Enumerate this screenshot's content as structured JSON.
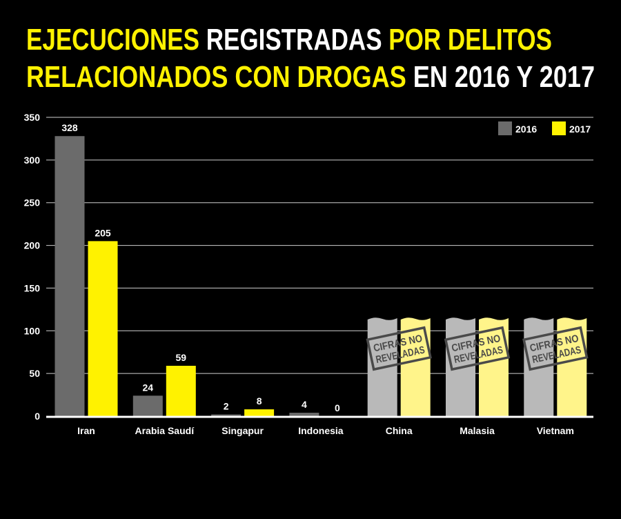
{
  "chart_data": {
    "type": "bar",
    "title_parts": [
      {
        "text": "EJECUCIONES",
        "color": "#fff200",
        "line": 1
      },
      {
        "text": " REGISTRADAS",
        "color": "#ffffff",
        "line": 1
      },
      {
        "text": " POR DELITOS",
        "color": "#fff200",
        "line": 1
      },
      {
        "text": "RELACIONADOS CON DROGAS",
        "color": "#fff200",
        "line": 2
      },
      {
        "text": " EN 2016 Y 2017",
        "color": "#ffffff",
        "line": 2
      }
    ],
    "categories": [
      "Iran",
      "Arabia Saudí",
      "Singapur",
      "Indonesia",
      "China",
      "Malasia",
      "Vietnam"
    ],
    "series": [
      {
        "name": "2016",
        "color": "#6b6b6b",
        "undisclosed_color": "#b9b9b9",
        "values": [
          328,
          24,
          2,
          4,
          null,
          null,
          null
        ]
      },
      {
        "name": "2017",
        "color": "#fff200",
        "undisclosed_color": "#fff48a",
        "values": [
          205,
          59,
          8,
          0,
          null,
          null,
          null
        ]
      }
    ],
    "undisclosed_label": [
      "CIFRAS NO",
      "REVELADAS"
    ],
    "yticks": [
      0,
      50,
      100,
      150,
      200,
      250,
      300,
      350
    ],
    "ylim": [
      0,
      350
    ],
    "grid": true,
    "legend": "top-right",
    "data_labels": true
  }
}
